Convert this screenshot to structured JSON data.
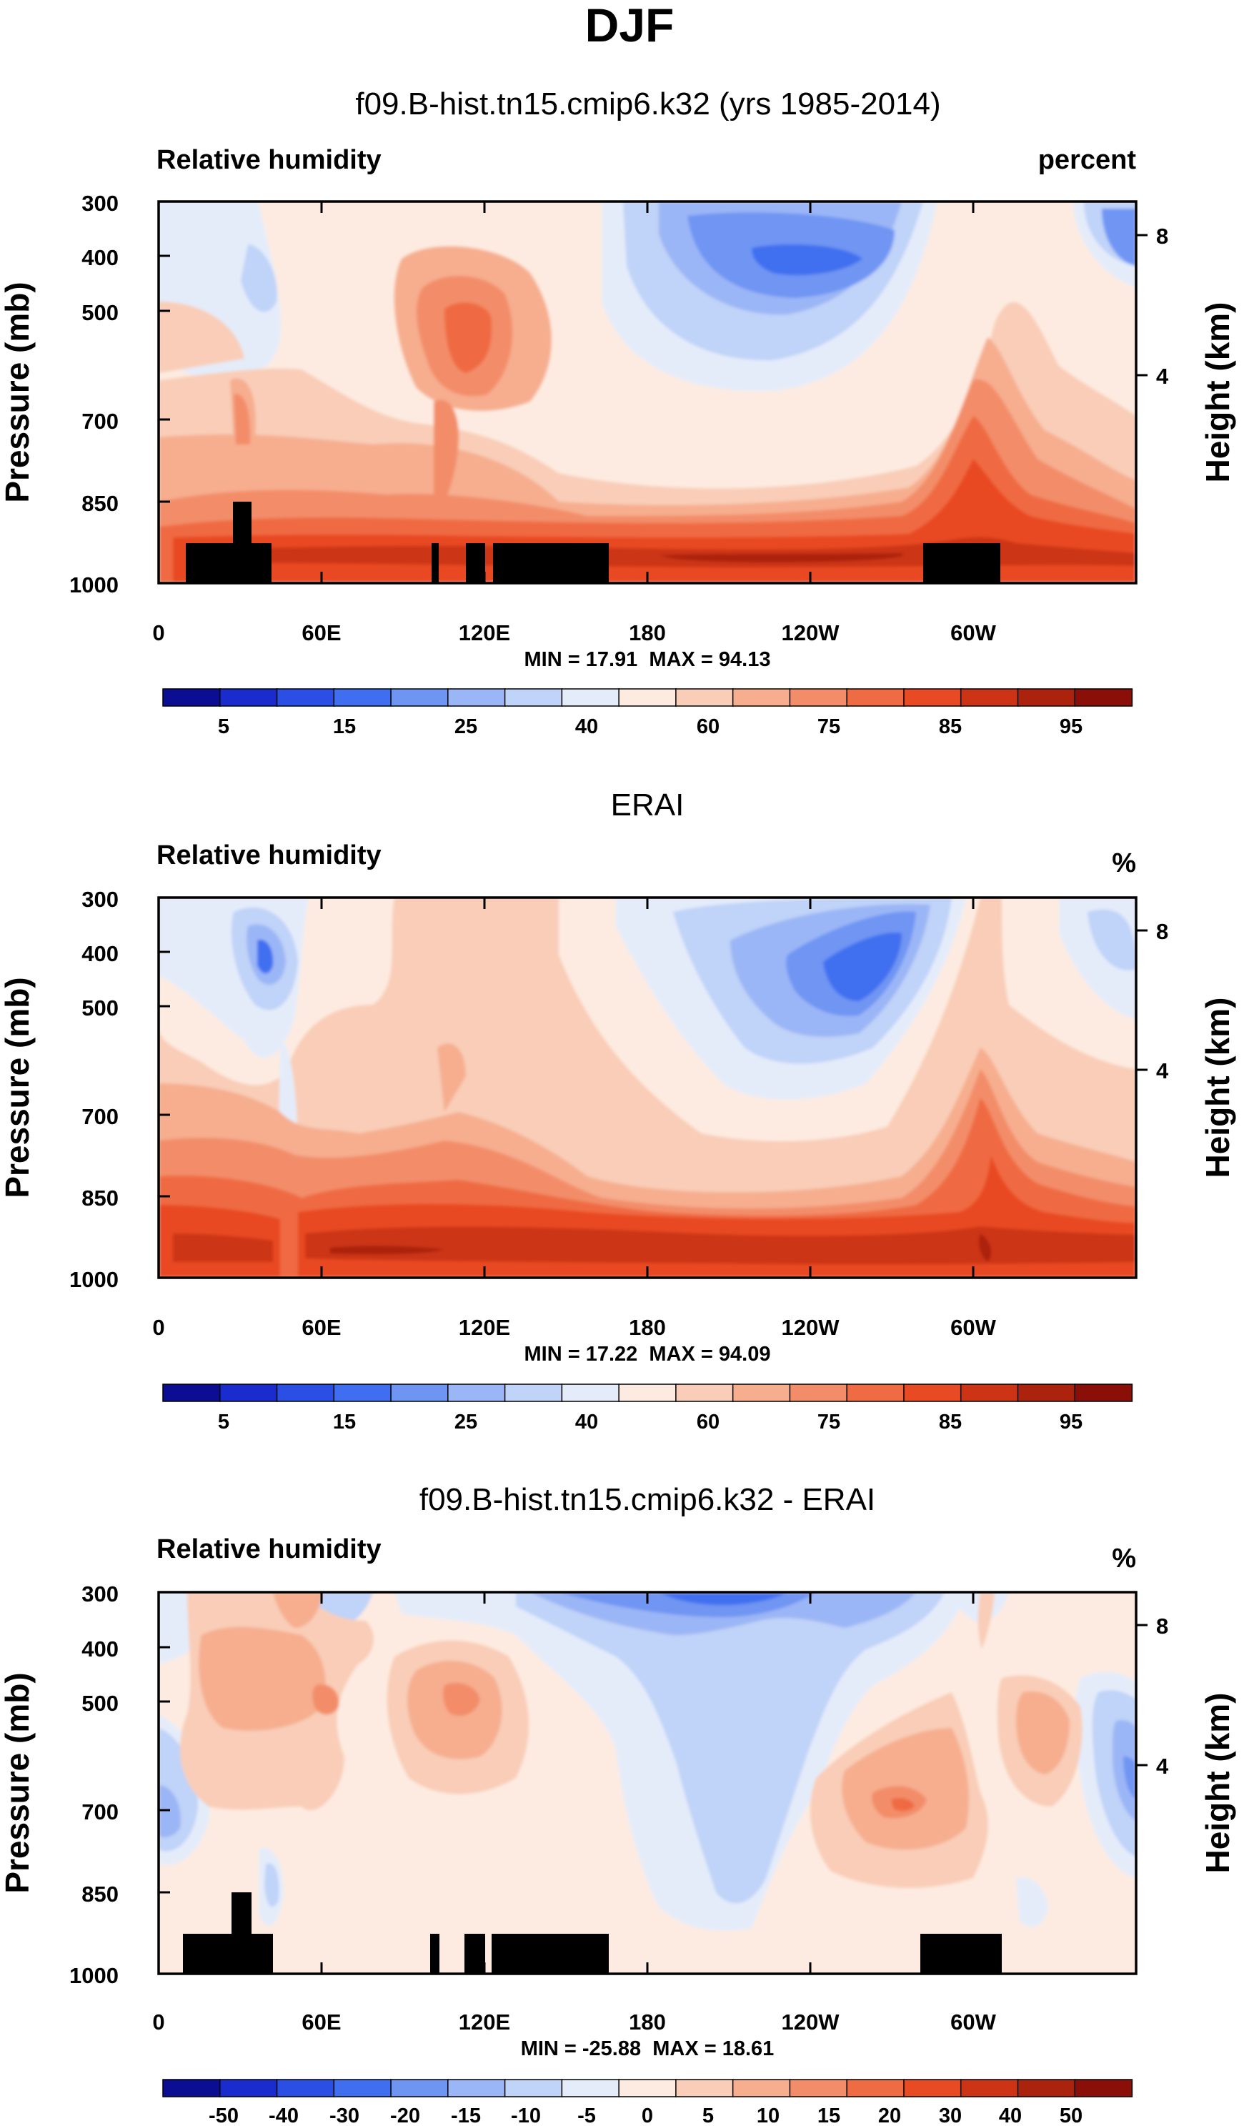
{
  "figure_title": "DJF",
  "colors": {
    "rh_palette": [
      "#0b0d92",
      "#1b2ccf",
      "#2b4fe4",
      "#3f6ff0",
      "#6f95f3",
      "#9bb6f6",
      "#c0d3f8",
      "#e4ecfa",
      "#fdebe1",
      "#f9cdb7",
      "#f6ae8f",
      "#f38d69",
      "#ef6b43",
      "#e84a24",
      "#cc3415",
      "#ab230d",
      "#8a0f08"
    ],
    "diff_palette": [
      "#0b0d92",
      "#1b2ccf",
      "#2b4fe4",
      "#3f6ff0",
      "#6f95f3",
      "#9bb6f6",
      "#c0d3f8",
      "#e4ecfa",
      "#fdebe1",
      "#f9cdb7",
      "#f6ae8f",
      "#f38d69",
      "#ef6b43",
      "#e84a24",
      "#cc3415",
      "#ab230d",
      "#8a0f08"
    ],
    "terrain": "#000000"
  },
  "chart_data": [
    {
      "type": "heatmap",
      "title": "f09.B-hist.tn15.cmip6.k32 (yrs 1985-2014)",
      "left_label": "Relative humidity",
      "right_label": "percent",
      "ylabel": "Pressure (mb)",
      "ylabel_right": "Height (km)",
      "xlabel": "",
      "x_ticks": [
        "0",
        "60E",
        "120E",
        "180",
        "120W",
        "60W"
      ],
      "y_ticks": [
        "300",
        "400",
        "500",
        "700",
        "850",
        "1000"
      ],
      "y_right_ticks": [
        "8",
        "4"
      ],
      "stats": "MIN = 17.91  MAX = 94.13",
      "min": 17.91,
      "max": 94.13,
      "ylim": [
        1000,
        300
      ],
      "xlim": [
        0,
        360
      ],
      "colorbar_labels": [
        "5",
        "15",
        "25",
        "40",
        "60",
        "75",
        "85",
        "95"
      ]
    },
    {
      "type": "heatmap",
      "title": "ERAI",
      "left_label": "Relative humidity",
      "right_label": "%",
      "ylabel": "Pressure (mb)",
      "ylabel_right": "Height (km)",
      "xlabel": "",
      "x_ticks": [
        "0",
        "60E",
        "120E",
        "180",
        "120W",
        "60W"
      ],
      "y_ticks": [
        "300",
        "400",
        "500",
        "700",
        "850",
        "1000"
      ],
      "y_right_ticks": [
        "8",
        "4"
      ],
      "stats": "MIN = 17.22  MAX = 94.09",
      "min": 17.22,
      "max": 94.09,
      "ylim": [
        1000,
        300
      ],
      "xlim": [
        0,
        360
      ],
      "colorbar_labels": [
        "5",
        "15",
        "25",
        "40",
        "60",
        "75",
        "85",
        "95"
      ]
    },
    {
      "type": "heatmap",
      "title": "f09.B-hist.tn15.cmip6.k32 - ERAI",
      "left_label": "Relative humidity",
      "right_label": "%",
      "ylabel": "Pressure (mb)",
      "ylabel_right": "Height (km)",
      "xlabel": "",
      "x_ticks": [
        "0",
        "60E",
        "120E",
        "180",
        "120W",
        "60W"
      ],
      "y_ticks": [
        "300",
        "400",
        "500",
        "700",
        "850",
        "1000"
      ],
      "y_right_ticks": [
        "8",
        "4"
      ],
      "stats": "MIN = -25.88  MAX = 18.61",
      "min": -25.88,
      "max": 18.61,
      "ylim": [
        1000,
        300
      ],
      "xlim": [
        0,
        360
      ],
      "colorbar_labels": [
        "-50",
        "-40",
        "-30",
        "-20",
        "-15",
        "-10",
        "-5",
        "0",
        "5",
        "10",
        "15",
        "20",
        "30",
        "40",
        "50"
      ]
    }
  ]
}
